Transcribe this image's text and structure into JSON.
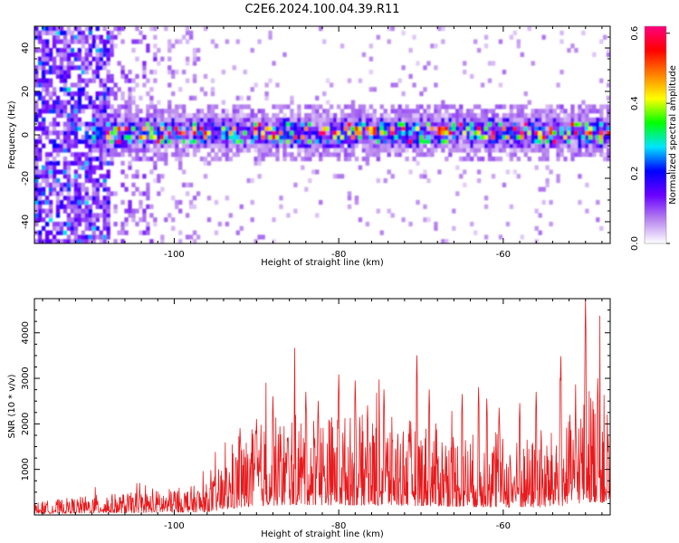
{
  "figure_title": "C2E6.2024.100.04.39.R11",
  "chart_data": [
    {
      "type": "heatmap",
      "xlabel": "Height of straight line (km)",
      "ylabel": "Frequency (Hz)",
      "xlim": [
        -117,
        -47
      ],
      "ylim": [
        -50,
        50
      ],
      "xticks": [
        -100,
        -80,
        -60
      ],
      "yticks": [
        -40,
        -20,
        0,
        20,
        40
      ],
      "x_tick_labels": [
        "-100",
        "-80",
        "-60"
      ],
      "y_tick_labels": [
        "-40",
        "-20",
        "0",
        "20",
        "40"
      ],
      "colorbar": {
        "label": "Normalized spectral amplitude",
        "range": [
          0,
          0.62
        ],
        "ticks": [
          0.0,
          0.2,
          0.4,
          0.6
        ],
        "tick_labels": [
          "0.0",
          "0.2",
          "0.4",
          "0.6"
        ],
        "colors": [
          "#ffffff",
          "#b784ee",
          "#6a00ff",
          "#0000ff",
          "#00e5ff",
          "#00ff00",
          "#ffff00",
          "#ff8000",
          "#ff0000",
          "#ff007f"
        ]
      },
      "band": {
        "start_height_km": -110,
        "center_frequency_hz": 1,
        "half_width_hz": 6,
        "peak_amplitude": 0.62
      },
      "scattered_noise": {
        "height_range_km": [
          -117,
          -108
        ],
        "frequency_range_hz": [
          -50,
          50
        ],
        "amplitude_range": [
          0.1,
          0.3
        ]
      }
    },
    {
      "type": "line",
      "xlabel": "Height of straight line (km)",
      "ylabel": "SNR (10 * v/v)",
      "xlim": [
        -117,
        -47
      ],
      "ylim": [
        0,
        4750
      ],
      "xticks": [
        -100,
        -80,
        -60
      ],
      "yticks": [
        1000,
        2000,
        3000,
        4000
      ],
      "x_tick_labels": [
        "-100",
        "-80",
        "-60"
      ],
      "y_tick_labels": [
        "1000",
        "2000",
        "3000",
        "4000"
      ],
      "series": [
        {
          "color": "#e8191c",
          "envelope": {
            "x": [
              -117,
              -110,
              -105,
              -100,
              -96,
              -93,
              -90,
              -85,
              -80,
              -75,
              -70,
              -65,
              -60,
              -55,
              -52,
              -50,
              -48,
              -47
            ],
            "y": [
              180,
              280,
              320,
              380,
              440,
              900,
              1300,
              1500,
              1450,
              1400,
              1350,
              1200,
              1100,
              1100,
              1400,
              1900,
              1800,
              1500
            ]
          },
          "peaks": [
            {
              "x": -50.0,
              "y": 4750
            },
            {
              "x": -70.5,
              "y": 3500
            },
            {
              "x": -53.0,
              "y": 3480
            },
            {
              "x": -80.0,
              "y": 3080
            },
            {
              "x": -78.0,
              "y": 2950
            },
            {
              "x": -84.0,
              "y": 2700
            },
            {
              "x": -88.0,
              "y": 2600
            },
            {
              "x": -74.5,
              "y": 2750
            },
            {
              "x": -65.0,
              "y": 2650
            },
            {
              "x": -63.0,
              "y": 2800
            },
            {
              "x": -69.0,
              "y": 2750
            },
            {
              "x": -56.0,
              "y": 2700
            },
            {
              "x": -48.5,
              "y": 3000
            },
            {
              "x": -62.0,
              "y": 2550
            },
            {
              "x": -90.0,
              "y": 2100
            },
            {
              "x": -92.0,
              "y": 1900
            },
            {
              "x": -58.0,
              "y": 2450
            },
            {
              "x": -82.5,
              "y": 2500
            },
            {
              "x": -76.5,
              "y": 2400
            },
            {
              "x": -60.5,
              "y": 2350
            }
          ]
        }
      ]
    }
  ]
}
